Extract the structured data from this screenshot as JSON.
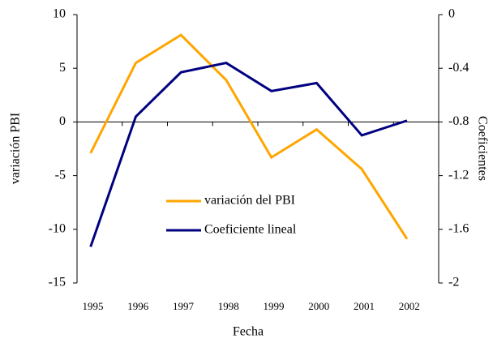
{
  "chart_data": {
    "type": "line",
    "x_label": "Fecha",
    "y_label": "variación PBI",
    "y2_label": "Coeficientes",
    "categories": [
      "1995",
      "1996",
      "1997",
      "1998",
      "1999",
      "2000",
      "2001",
      "2002"
    ],
    "series": [
      {
        "name": "variación del PBI",
        "color": "#ffa500",
        "values": [
          -2.9,
          5.5,
          8.1,
          3.9,
          -3.3,
          -0.7,
          -4.4,
          -10.9
        ]
      },
      {
        "name": "Coeficiente lineal",
        "color": "#000080",
        "axis": "y2",
        "values": [
          -1.73,
          -0.76,
          -0.43,
          -0.36,
          -0.57,
          -0.51,
          -0.9,
          -0.79
        ]
      }
    ],
    "ylim": [
      -15,
      10
    ],
    "yticks": [
      -15,
      -10,
      -5,
      0,
      5,
      10
    ],
    "y2lim": [
      -2,
      0
    ],
    "y2ticks": [
      -2,
      -1.6,
      -1.2,
      -0.8,
      -0.4,
      0
    ],
    "grid": false
  }
}
